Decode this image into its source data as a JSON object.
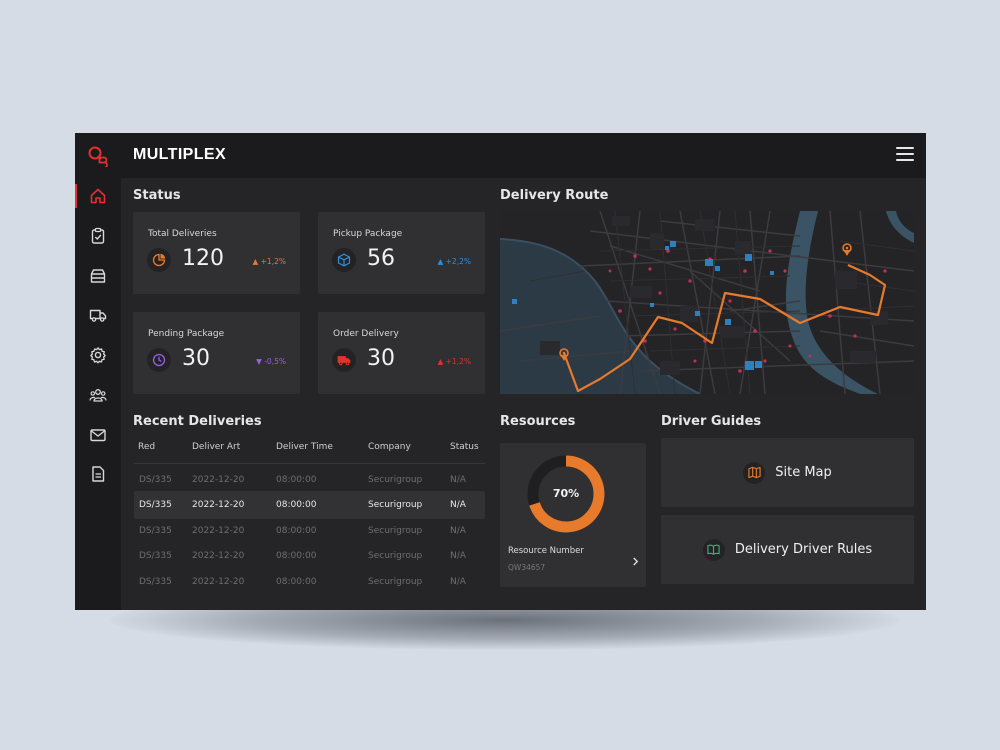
{
  "app": {
    "brand": "MULTIPLEX",
    "logo_text": "QB"
  },
  "sidebar": {
    "items": [
      {
        "name": "home",
        "icon": "home-icon",
        "active": true
      },
      {
        "name": "tasks",
        "icon": "clipboard-check-icon"
      },
      {
        "name": "packages",
        "icon": "archive-box-icon"
      },
      {
        "name": "deliveries",
        "icon": "truck-icon"
      },
      {
        "name": "settings",
        "icon": "gear-icon"
      },
      {
        "name": "team",
        "icon": "users-icon"
      },
      {
        "name": "messages",
        "icon": "mail-icon"
      },
      {
        "name": "documents",
        "icon": "document-icon"
      }
    ]
  },
  "status": {
    "title": "Status",
    "cards": [
      {
        "label": "Total Deliveries",
        "value": "120",
        "trend": "▲ +1,2%",
        "trend_color": "#e87a2c",
        "icon": "pie-chart-icon",
        "icon_color": "#e87a2c"
      },
      {
        "label": "Pickup Package",
        "value": "56",
        "trend": "▲ +2,2%",
        "trend_color": "#2f8fd8",
        "icon": "cube-icon",
        "icon_color": "#2f8fd8"
      },
      {
        "label": "Pending Package",
        "value": "30",
        "trend": "▼ -0,5%",
        "trend_color": "#9b5de5",
        "icon": "clock-icon",
        "icon_color": "#9b5de5"
      },
      {
        "label": "Order Delivery",
        "value": "30",
        "trend": "▲ +1,2%",
        "trend_color": "#e0322f",
        "icon": "truck-icon",
        "icon_color": "#e0322f"
      }
    ]
  },
  "delivery_route": {
    "title": "Delivery Route",
    "route_color": "#e87a2c"
  },
  "recent": {
    "title": "Recent Deliveries",
    "columns": [
      "Red",
      "Deliver Art",
      "Deliver Time",
      "Company",
      "Status"
    ],
    "rows": [
      [
        "DS/335",
        "2022-12-20",
        "08:00:00",
        "Securigroup",
        "N/A"
      ],
      [
        "DS/335",
        "2022-12-20",
        "08:00:00",
        "Securigroup",
        "N/A"
      ],
      [
        "DS/335",
        "2022-12-20",
        "08:00:00",
        "Securigroup",
        "N/A"
      ],
      [
        "DS/335",
        "2022-12-20",
        "08:00:00",
        "Securigroup",
        "N/A"
      ],
      [
        "DS/335",
        "2022-12-20",
        "08:00:00",
        "Securigroup",
        "N/A"
      ]
    ],
    "highlighted_row": 1
  },
  "resources": {
    "title": "Resources",
    "percent": 70,
    "percent_label": "70%",
    "ring_color": "#e87a2c",
    "number_label": "Resource Number",
    "number_value": "QW34657"
  },
  "guides": {
    "title": "Driver Guides",
    "items": [
      {
        "label": "Site Map",
        "icon": "map-icon",
        "color": "#e87a2c"
      },
      {
        "label": "Delivery Driver Rules",
        "icon": "book-icon",
        "color": "#2fb87a"
      }
    ]
  },
  "colors": {
    "accent": "#e0322f",
    "orange": "#e87a2c",
    "panel": "#303033",
    "background": "#252527"
  }
}
